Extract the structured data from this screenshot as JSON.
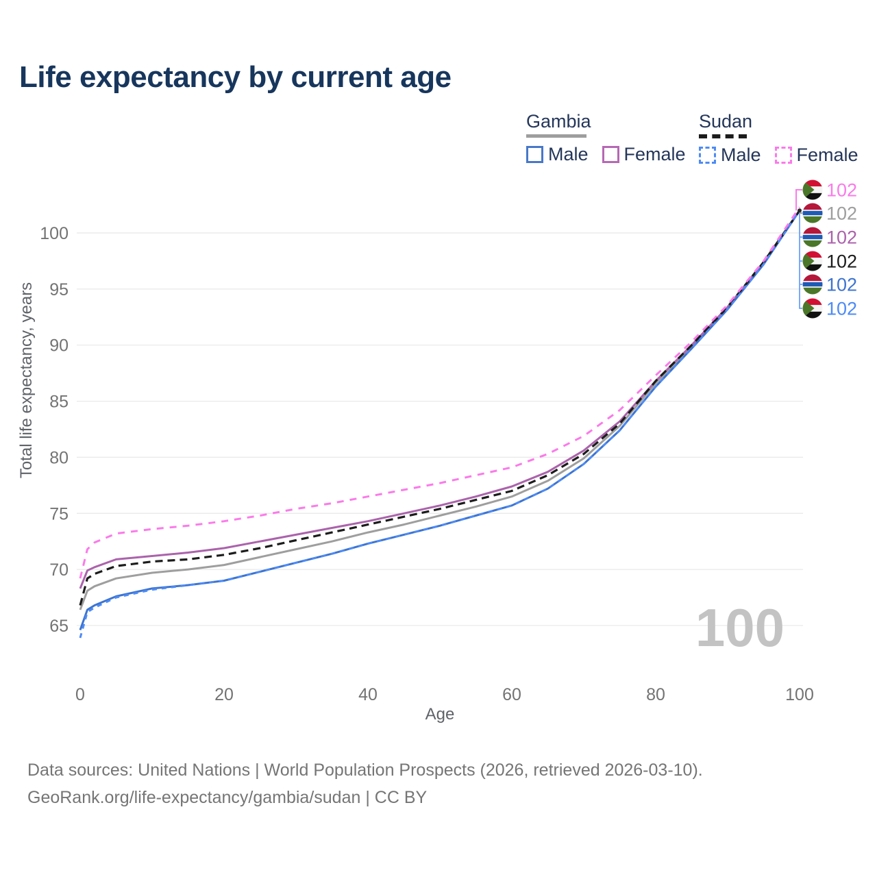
{
  "title": "Life expectancy by current age",
  "watermark": "100",
  "legend": {
    "groups": [
      {
        "country": "Gambia",
        "swatch_color": "#9e9e9e",
        "swatch_dashed": false,
        "items": [
          {
            "label": "Male",
            "color": "#4878c8",
            "dashed": false
          },
          {
            "label": "Female",
            "color": "#b668b4",
            "dashed": false
          }
        ]
      },
      {
        "country": "Sudan",
        "swatch_color": "#1c1c1c",
        "swatch_dashed": true,
        "items": [
          {
            "label": "Male",
            "color": "#4d8bf5",
            "dashed": true
          },
          {
            "label": "Female",
            "color": "#fb7ae9",
            "dashed": true
          }
        ]
      }
    ]
  },
  "chart_data": {
    "type": "line",
    "title": "Life expectancy by current age",
    "xlabel": "Age",
    "ylabel": "Total life expectancy, years",
    "xlim": [
      0,
      100
    ],
    "ylim": [
      63,
      104
    ],
    "xticks": [
      0,
      20,
      40,
      60,
      80,
      100
    ],
    "yticks": [
      65,
      70,
      75,
      80,
      85,
      90,
      95,
      100
    ],
    "grid": "horizontal",
    "legend_position": "top-right",
    "x": [
      0,
      1,
      2,
      5,
      10,
      15,
      20,
      25,
      30,
      35,
      40,
      45,
      50,
      55,
      60,
      65,
      70,
      75,
      80,
      85,
      90,
      95,
      100
    ],
    "series": [
      {
        "name": "Gambia",
        "country": "Gambia",
        "sex": "both",
        "color": "#9e9e9e",
        "dash": "",
        "width": 3,
        "values": [
          66.4,
          68.1,
          68.5,
          69.2,
          69.7,
          70.0,
          70.4,
          71.1,
          71.8,
          72.5,
          73.3,
          74.0,
          74.8,
          75.6,
          76.5,
          77.9,
          79.9,
          82.8,
          86.6,
          89.9,
          93.3,
          97.3,
          102
        ]
      },
      {
        "name": "Gambia Female",
        "country": "Gambia",
        "sex": "female",
        "color": "#ab63ab",
        "dash": "",
        "width": 3,
        "values": [
          68.3,
          69.9,
          70.2,
          70.9,
          71.2,
          71.5,
          71.9,
          72.5,
          73.1,
          73.7,
          74.3,
          75.0,
          75.7,
          76.5,
          77.4,
          78.7,
          80.6,
          83.2,
          86.8,
          90.0,
          93.4,
          97.4,
          102
        ]
      },
      {
        "name": "Gambia Male",
        "country": "Gambia",
        "sex": "male",
        "color": "#3d74cf",
        "dash": "",
        "width": 3,
        "values": [
          64.6,
          66.4,
          66.8,
          67.6,
          68.3,
          68.6,
          69.0,
          69.8,
          70.6,
          71.4,
          72.3,
          73.1,
          73.9,
          74.8,
          75.7,
          77.2,
          79.4,
          82.4,
          86.3,
          89.7,
          93.2,
          97.2,
          102
        ]
      },
      {
        "name": "Sudan",
        "country": "Sudan",
        "sex": "both",
        "color": "#1c1c1c",
        "dash": "11,7",
        "width": 3.2,
        "values": [
          66.8,
          69.2,
          69.6,
          70.3,
          70.7,
          70.9,
          71.3,
          71.9,
          72.6,
          73.3,
          74.0,
          74.7,
          75.4,
          76.2,
          77.0,
          78.4,
          80.3,
          83.0,
          86.8,
          90.0,
          93.4,
          97.4,
          102
        ]
      },
      {
        "name": "Sudan Male",
        "country": "Sudan",
        "sex": "male",
        "color": "#4d8bf5",
        "dash": "7,7",
        "width": 3,
        "values": [
          63.9,
          66.2,
          66.6,
          67.5,
          68.2,
          68.6,
          69.0,
          69.8,
          70.6,
          71.4,
          72.3,
          73.1,
          73.9,
          74.8,
          75.7,
          77.2,
          79.4,
          82.4,
          86.3,
          89.7,
          93.2,
          97.2,
          102
        ]
      },
      {
        "name": "Sudan Female",
        "country": "Sudan",
        "sex": "female",
        "color": "#fb7ae9",
        "dash": "10,9",
        "width": 3,
        "values": [
          69.2,
          71.8,
          72.4,
          73.2,
          73.6,
          73.9,
          74.3,
          74.8,
          75.4,
          75.9,
          76.5,
          77.1,
          77.7,
          78.4,
          79.1,
          80.3,
          81.9,
          84.2,
          87.3,
          90.3,
          93.6,
          97.5,
          102.3
        ]
      }
    ],
    "end_labels": [
      {
        "flag": "sudan",
        "series": "Sudan Female",
        "value": "102",
        "color": "#fb7ae9"
      },
      {
        "flag": "gambia",
        "series": "Gambia",
        "value": "102",
        "color": "#9e9e9e"
      },
      {
        "flag": "gambia",
        "series": "Gambia Female",
        "value": "102",
        "color": "#ab63ab"
      },
      {
        "flag": "sudan",
        "series": "Sudan",
        "value": "102",
        "color": "#1c1c1c"
      },
      {
        "flag": "gambia",
        "series": "Gambia Male",
        "value": "102",
        "color": "#3d74cf"
      },
      {
        "flag": "sudan",
        "series": "Sudan Male",
        "value": "102",
        "color": "#4d8bf5"
      }
    ],
    "leader_color": "#6ba1f7",
    "flag_colors": {
      "sudan": {
        "red": "#d21034",
        "white": "#f4f4f4",
        "black": "#111111",
        "green": "#4a7729"
      },
      "gambia": {
        "red": "#b5173a",
        "white": "#f4f4f4",
        "blue": "#1f5bb5",
        "green": "#4a7729"
      }
    }
  },
  "footer": {
    "line1": "Data sources: United Nations | World Population Prospects (2026, retrieved 2026-03-10).",
    "line2": "GeoRank.org/life-expectancy/gambia/sudan | CC BY"
  }
}
